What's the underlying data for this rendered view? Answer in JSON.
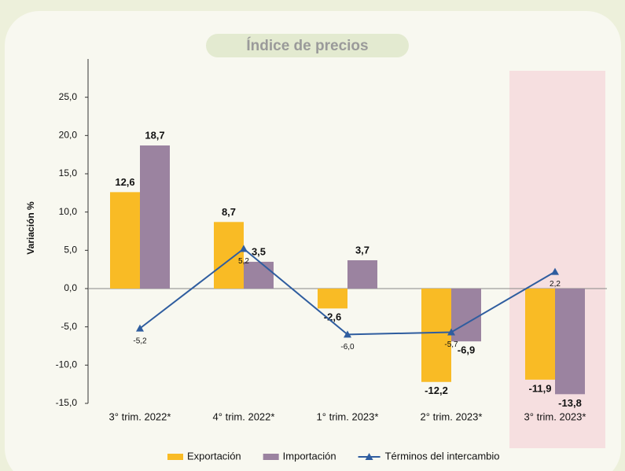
{
  "chart_data": {
    "type": "bar",
    "title": "Índice de precios",
    "y_label": "Variación %",
    "categories": [
      "3° trim. 2022*",
      "4° trim. 2022*",
      "1° trim. 2023*",
      "2° trim. 2023*",
      "3° trim. 2023*"
    ],
    "series": [
      {
        "name": "Exportación",
        "color": "#f9bb25",
        "type": "bar",
        "values": [
          12.6,
          8.7,
          -2.6,
          -12.2,
          -11.9
        ],
        "value_labels": [
          "12,6",
          "8,7",
          "-2,6",
          "-12,2",
          "-11,9"
        ]
      },
      {
        "name": "Importación",
        "color": "#9b83a0",
        "type": "bar",
        "values": [
          18.7,
          3.5,
          3.7,
          -6.9,
          -13.8
        ],
        "value_labels": [
          "18,7",
          "3,5",
          "3,7",
          "-6,9",
          "-13,8"
        ]
      },
      {
        "name": "Términos del intercambio",
        "color": "#2f5d9f",
        "type": "line",
        "values": [
          -5.2,
          5.2,
          -6.0,
          -5.7,
          2.2
        ],
        "value_labels": [
          "-5,2",
          "5,2",
          "-6,0",
          "-5,7",
          "2,2"
        ]
      }
    ],
    "ylim": [
      -15,
      30
    ],
    "yticks": [
      {
        "value": -15,
        "label": "-15,0"
      },
      {
        "value": -10,
        "label": "-10,0"
      },
      {
        "value": -5,
        "label": "-5,0"
      },
      {
        "value": 0,
        "label": "0,0"
      },
      {
        "value": 5,
        "label": "5,0"
      },
      {
        "value": 10,
        "label": "10,0"
      },
      {
        "value": 15,
        "label": "15,0"
      },
      {
        "value": 20,
        "label": "20,0"
      },
      {
        "value": 25,
        "label": "25,0"
      }
    ]
  }
}
